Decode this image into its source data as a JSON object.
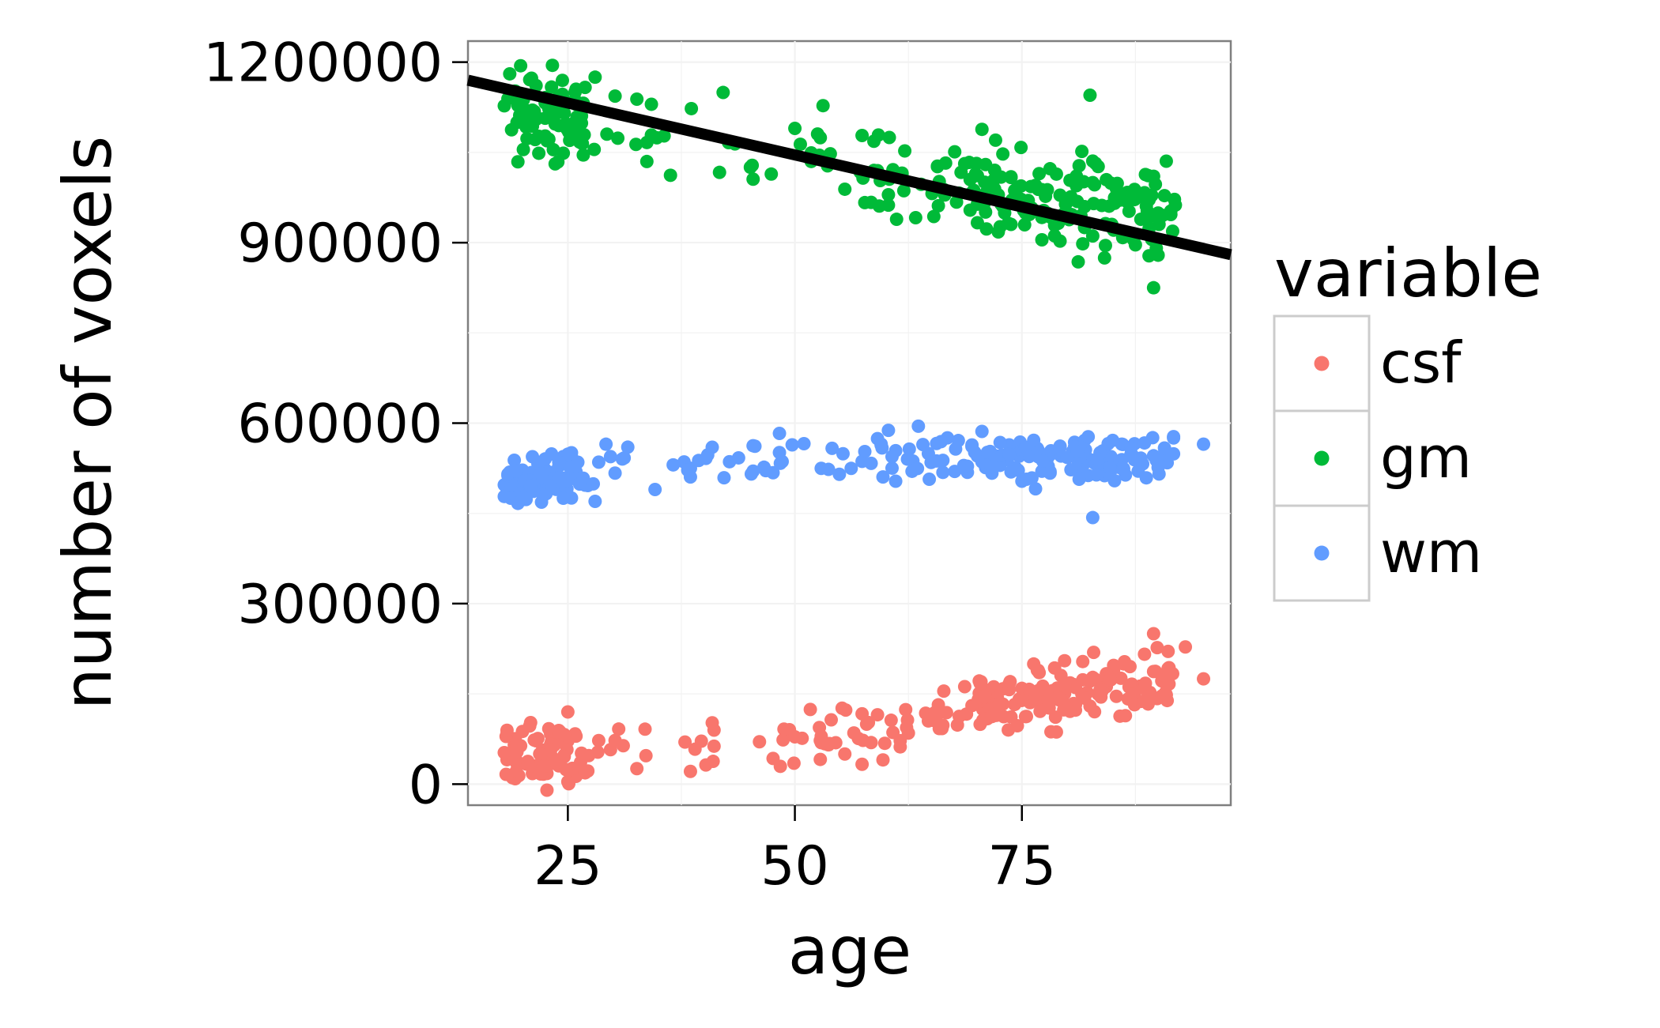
{
  "chart_data": {
    "type": "scatter",
    "title": "",
    "xlabel": "age",
    "ylabel": "number of voxels",
    "xlim": [
      14,
      98
    ],
    "ylim": [
      -35000,
      1235000
    ],
    "x_ticks": [
      25,
      50,
      75
    ],
    "y_ticks": [
      0,
      300000,
      600000,
      900000,
      1200000
    ],
    "x_tick_labels": [
      "25",
      "50",
      "75"
    ],
    "y_tick_labels": [
      "0",
      "300000",
      "600000",
      "900000",
      "1200000"
    ],
    "grid": true,
    "legend": {
      "title": "variable",
      "position": "right"
    },
    "fit_line": {
      "series": "gm",
      "color": "#000000",
      "points": [
        [
          14,
          1170000
        ],
        [
          98,
          880000
        ]
      ]
    },
    "series": [
      {
        "name": "csf",
        "color": "#F8766D",
        "trend": [
          [
            18,
            40000
          ],
          [
            30,
            60000
          ],
          [
            45,
            70000
          ],
          [
            55,
            80000
          ],
          [
            63,
            100000
          ],
          [
            72,
            135000
          ],
          [
            82,
            160000
          ],
          [
            96,
            185000
          ]
        ],
        "jitter": 25000,
        "points": []
      },
      {
        "name": "gm",
        "color": "#00BA38",
        "trend": [
          [
            18,
            1110000
          ],
          [
            30,
            1090000
          ],
          [
            45,
            1050000
          ],
          [
            55,
            1040000
          ],
          [
            65,
            1000000
          ],
          [
            75,
            980000
          ],
          [
            85,
            950000
          ],
          [
            96,
            950000
          ]
        ],
        "jitter": 40000,
        "points": []
      },
      {
        "name": "wm",
        "color": "#619CFF",
        "trend": [
          [
            18,
            500000
          ],
          [
            25,
            515000
          ],
          [
            35,
            530000
          ],
          [
            50,
            540000
          ],
          [
            65,
            545000
          ],
          [
            80,
            540000
          ],
          [
            96,
            545000
          ]
        ],
        "jitter": 20000,
        "points": []
      }
    ]
  }
}
